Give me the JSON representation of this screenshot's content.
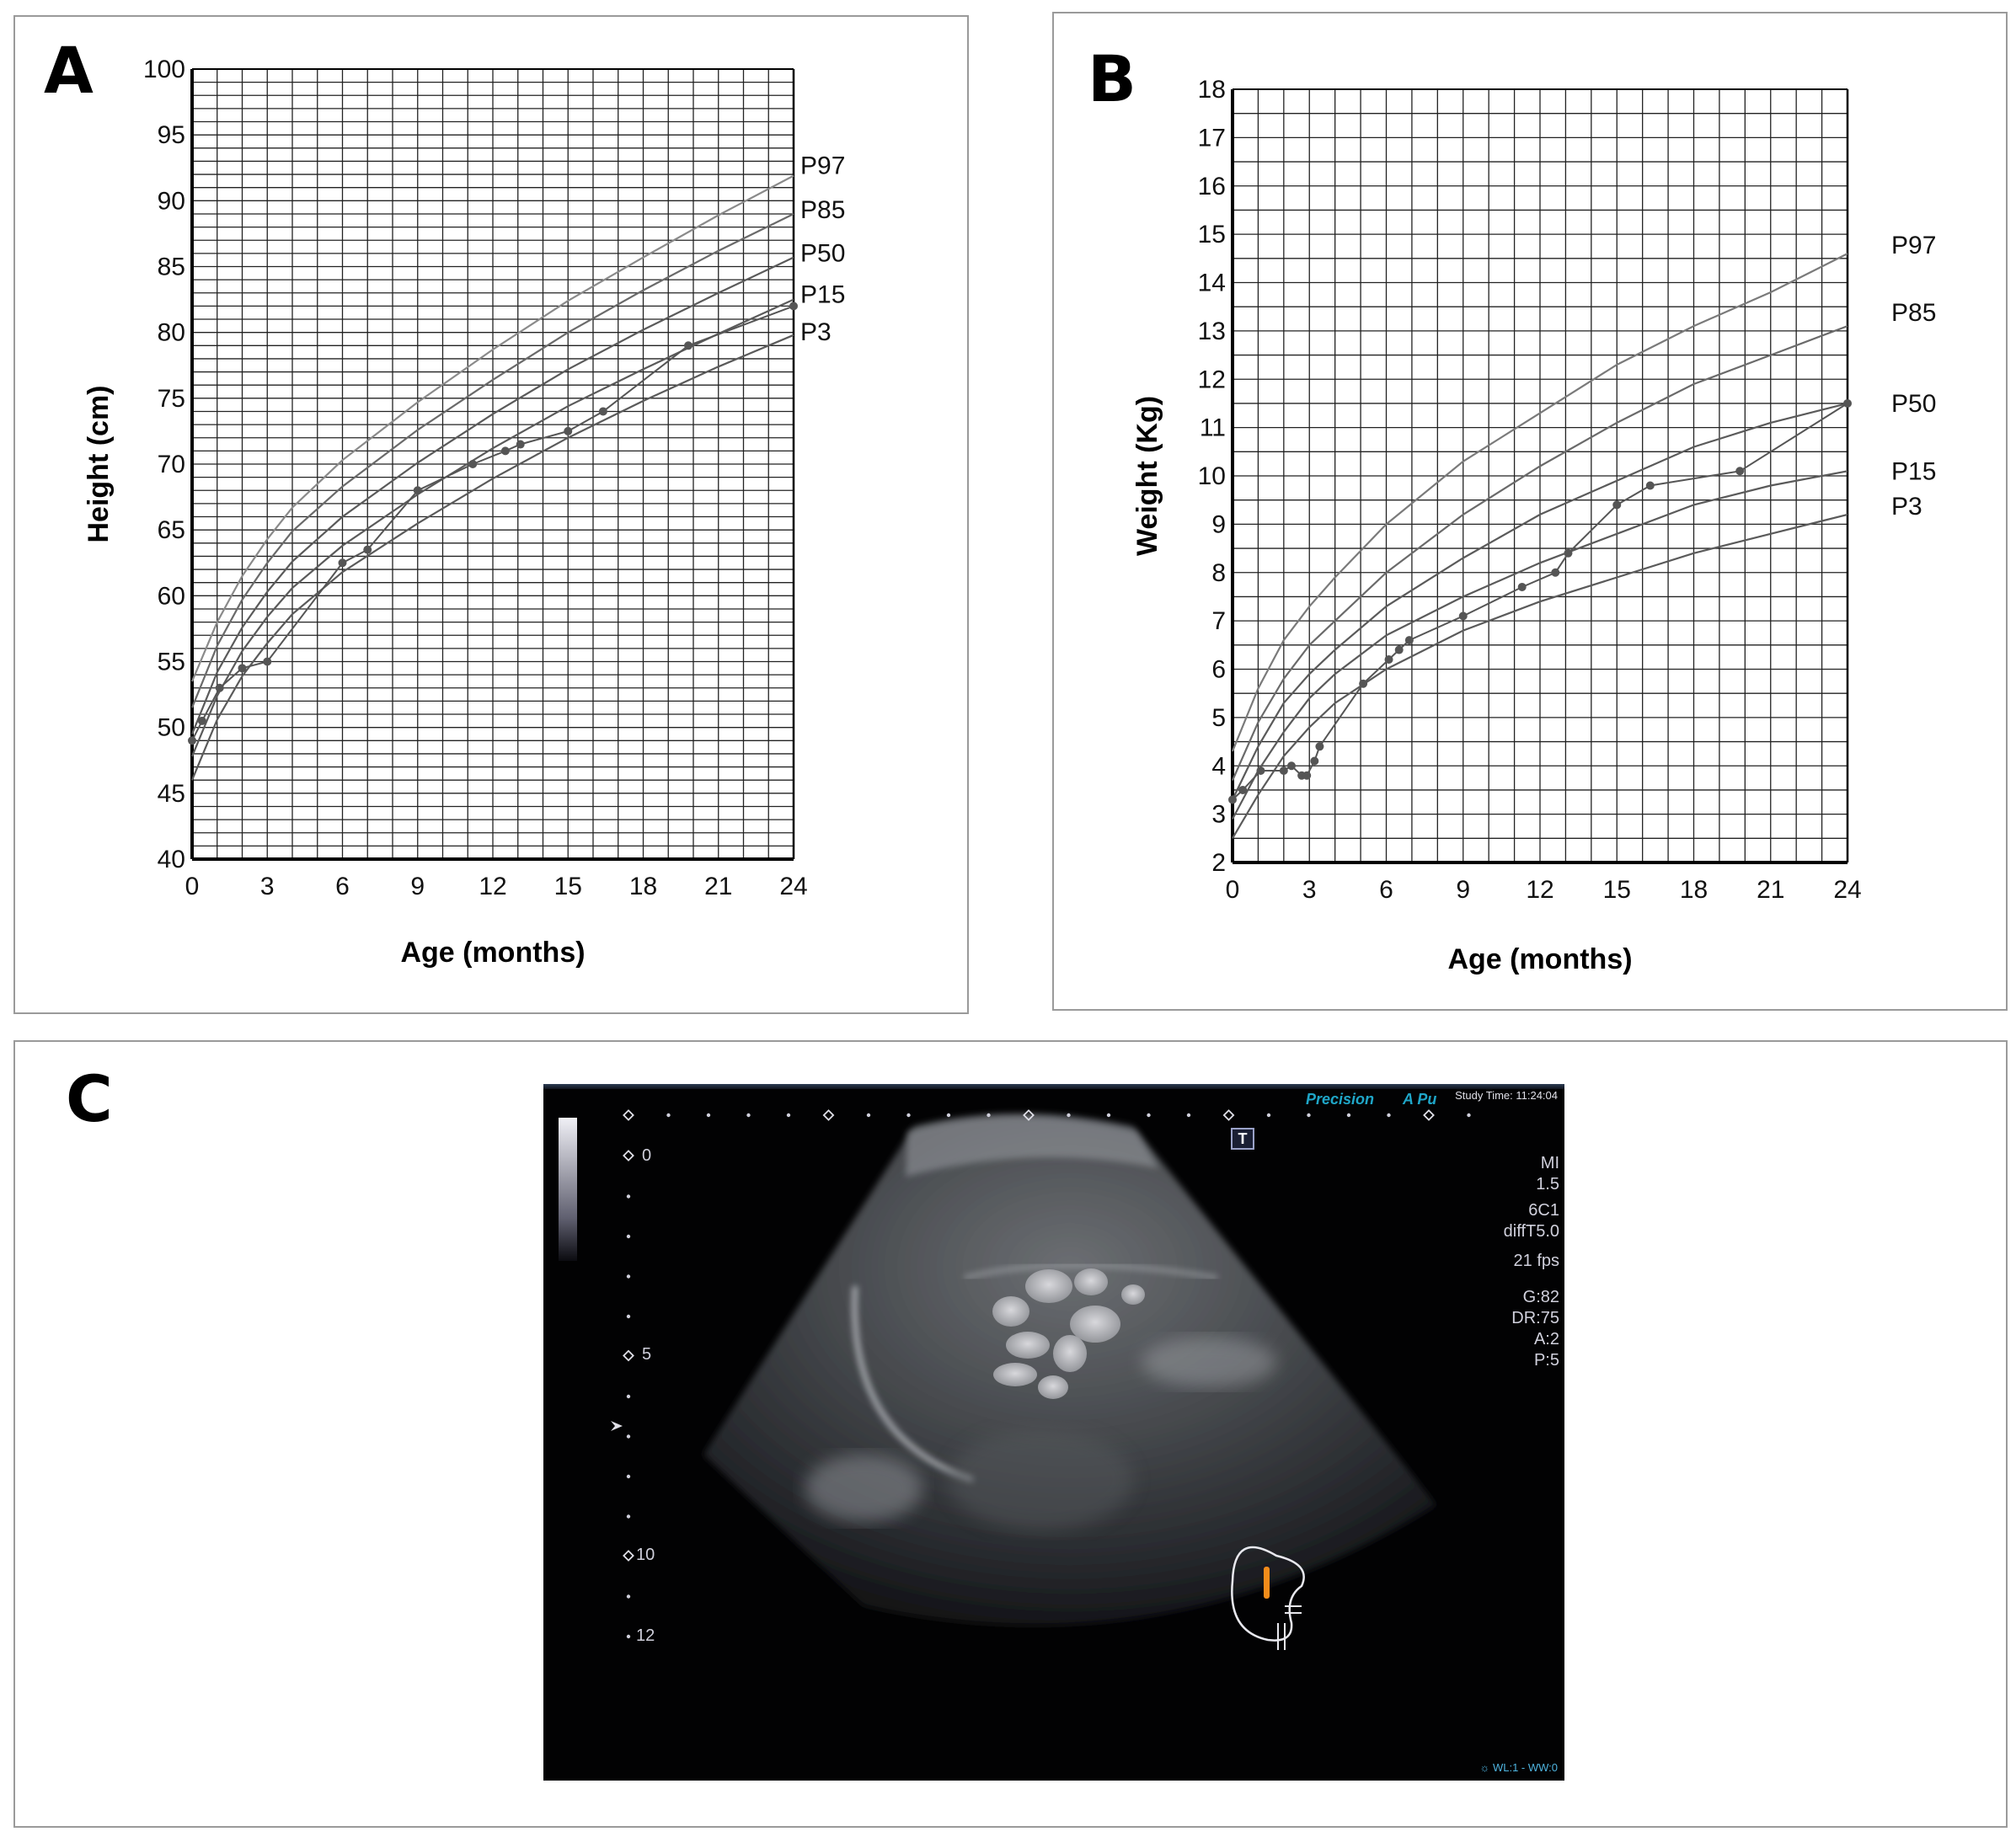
{
  "panels": {
    "a": {
      "letter": "A"
    },
    "b": {
      "letter": "B"
    },
    "c": {
      "letter": "C"
    }
  },
  "chart_data": [
    {
      "id": "height",
      "type": "line",
      "xlabel": "Age (months)",
      "ylabel": "Height (cm)",
      "xlim": [
        0,
        24
      ],
      "ylim": [
        40,
        100
      ],
      "xticks": [
        0,
        3,
        6,
        9,
        12,
        15,
        18,
        21,
        24
      ],
      "yticks": [
        40,
        45,
        50,
        55,
        60,
        65,
        70,
        75,
        80,
        85,
        90,
        95,
        100
      ],
      "grid": true,
      "series": [
        {
          "name": "P97",
          "color": "#8a8a8a",
          "x": [
            0,
            1,
            2,
            3,
            4,
            6,
            9,
            12,
            15,
            18,
            21,
            24
          ],
          "y": [
            53.5,
            58.0,
            61.5,
            64.3,
            66.7,
            70.3,
            74.7,
            78.7,
            82.4,
            85.7,
            88.9,
            91.9
          ]
        },
        {
          "name": "P85",
          "color": "#6a6a6a",
          "x": [
            0,
            1,
            2,
            3,
            4,
            6,
            9,
            12,
            15,
            18,
            21,
            24
          ],
          "y": [
            51.5,
            56.2,
            59.7,
            62.5,
            64.9,
            68.3,
            72.6,
            76.4,
            80.0,
            83.2,
            86.2,
            89.0
          ]
        },
        {
          "name": "P50",
          "color": "#5a5a5a",
          "x": [
            0,
            1,
            2,
            3,
            4,
            6,
            9,
            12,
            15,
            18,
            21,
            24
          ],
          "y": [
            49.5,
            54.2,
            57.6,
            60.3,
            62.6,
            66.0,
            70.1,
            73.8,
            77.2,
            80.2,
            83.0,
            85.7
          ]
        },
        {
          "name": "P15",
          "color": "#5a5a5a",
          "x": [
            0,
            1,
            2,
            3,
            4,
            6,
            9,
            12,
            15,
            18,
            21,
            24
          ],
          "y": [
            47.8,
            52.4,
            55.8,
            58.4,
            60.6,
            63.8,
            67.7,
            71.2,
            74.4,
            77.2,
            79.9,
            82.5
          ]
        },
        {
          "name": "P3",
          "color": "#5a5a5a",
          "x": [
            0,
            1,
            2,
            3,
            4,
            6,
            9,
            12,
            15,
            18,
            21,
            24
          ],
          "y": [
            46.0,
            50.6,
            53.9,
            56.4,
            58.6,
            61.8,
            65.5,
            68.9,
            72.0,
            74.8,
            77.4,
            79.8
          ]
        },
        {
          "name": "Patient",
          "color": "#555555",
          "markers": true,
          "x": [
            0,
            0.4,
            1.1,
            2.0,
            3.0,
            6.0,
            7.0,
            9.0,
            11.2,
            12.5,
            13.1,
            15.0,
            16.4,
            19.8,
            24.0
          ],
          "y": [
            49.0,
            50.5,
            53.0,
            54.5,
            55.0,
            62.5,
            63.5,
            68.0,
            70.0,
            71.0,
            71.5,
            72.5,
            74.0,
            79.0,
            82.0
          ]
        }
      ]
    },
    {
      "id": "weight",
      "type": "line",
      "xlabel": "Age (months)",
      "ylabel": "Weight (Kg)",
      "xlim": [
        0,
        24
      ],
      "ylim": [
        2,
        18
      ],
      "xticks": [
        0,
        3,
        6,
        9,
        12,
        15,
        18,
        21,
        24
      ],
      "yticks": [
        2,
        3,
        4,
        5,
        6,
        7,
        8,
        9,
        10,
        11,
        12,
        13,
        14,
        15,
        16,
        17,
        18
      ],
      "grid": true,
      "series": [
        {
          "name": "P97",
          "color": "#7a7a7a",
          "x": [
            0,
            1,
            2,
            3,
            4,
            6,
            9,
            12,
            15,
            18,
            21,
            24
          ],
          "y": [
            4.3,
            5.6,
            6.6,
            7.3,
            7.9,
            9.0,
            10.3,
            11.3,
            12.3,
            13.1,
            13.8,
            14.6
          ]
        },
        {
          "name": "P85",
          "color": "#6a6a6a",
          "x": [
            0,
            1,
            2,
            3,
            4,
            6,
            9,
            12,
            15,
            18,
            21,
            24
          ],
          "y": [
            3.7,
            4.9,
            5.8,
            6.5,
            7.0,
            8.0,
            9.2,
            10.2,
            11.1,
            11.9,
            12.5,
            13.1
          ]
        },
        {
          "name": "P50",
          "color": "#5a5a5a",
          "x": [
            0,
            1,
            2,
            3,
            4,
            6,
            9,
            12,
            15,
            18,
            21,
            24
          ],
          "y": [
            3.3,
            4.4,
            5.3,
            5.9,
            6.4,
            7.3,
            8.3,
            9.2,
            9.9,
            10.6,
            11.1,
            11.5
          ]
        },
        {
          "name": "P15",
          "color": "#5a5a5a",
          "x": [
            0,
            1,
            2,
            3,
            4,
            6,
            9,
            12,
            15,
            18,
            21,
            24
          ],
          "y": [
            2.9,
            3.9,
            4.7,
            5.4,
            5.9,
            6.7,
            7.5,
            8.2,
            8.8,
            9.4,
            9.8,
            10.1
          ]
        },
        {
          "name": "P3",
          "color": "#5a5a5a",
          "x": [
            0,
            1,
            2,
            3,
            4,
            6,
            9,
            12,
            15,
            18,
            21,
            24
          ],
          "y": [
            2.5,
            3.4,
            4.2,
            4.8,
            5.3,
            6.0,
            6.8,
            7.4,
            7.9,
            8.4,
            8.8,
            9.2
          ]
        },
        {
          "name": "Patient",
          "color": "#555555",
          "markers": true,
          "x": [
            0,
            0.4,
            1.1,
            2.0,
            2.3,
            2.7,
            2.9,
            3.2,
            3.4,
            5.1,
            6.1,
            6.5,
            6.9,
            9.0,
            11.3,
            12.6,
            13.1,
            15.0,
            16.3,
            19.8,
            24.0
          ],
          "y": [
            3.3,
            3.5,
            3.9,
            3.9,
            4.0,
            3.8,
            3.8,
            4.1,
            4.4,
            5.7,
            6.2,
            6.4,
            6.6,
            7.1,
            7.7,
            8.0,
            8.4,
            9.4,
            9.8,
            10.1,
            11.5
          ]
        }
      ]
    }
  ],
  "ultrasound": {
    "brand": "Precision",
    "brand_b": "A Pu",
    "study_time": "Study Time: 11:24:04",
    "depth_labels": [
      "0",
      "5",
      "10",
      "12"
    ],
    "params": [
      "MI",
      "1.5",
      "6C1",
      "diffT5.0",
      "21 fps",
      "G:82",
      "DR:75",
      "A:2",
      "P:5"
    ],
    "t_marker": "T",
    "wl_ww": "WL:1 - WW:0",
    "accent_color": "#f28c1a"
  }
}
